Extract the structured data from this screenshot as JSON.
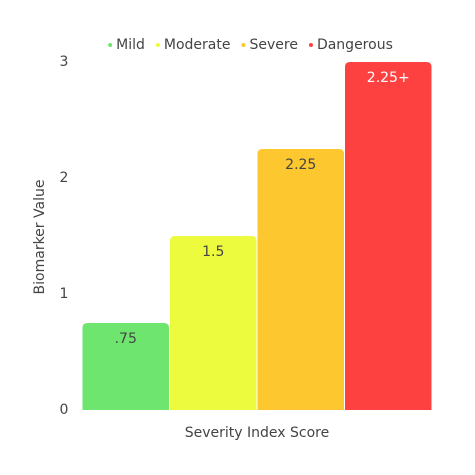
{
  "chart_data": {
    "type": "bar",
    "x_label": "Severity Index Score",
    "y_label": "Biomarker Value",
    "ylim": [
      0,
      3
    ],
    "yticks": [
      0,
      1,
      2,
      3
    ],
    "grid": false,
    "legend": "top",
    "series": [
      {
        "name": "Mild",
        "color": "#6de56e",
        "values": [
          0.75
        ],
        "value_labels": [
          ".75"
        ]
      },
      {
        "name": "Moderate",
        "color": "#edfb3e",
        "values": [
          1.5
        ],
        "value_labels": [
          "1.5"
        ]
      },
      {
        "name": "Severe",
        "color": "#fdc72f",
        "values": [
          2.25
        ],
        "value_labels": [
          "2.25"
        ]
      },
      {
        "name": "Dangerous",
        "color": "#fd4141",
        "values": [
          3
        ],
        "value_labels": [
          "2.25+"
        ]
      }
    ]
  }
}
